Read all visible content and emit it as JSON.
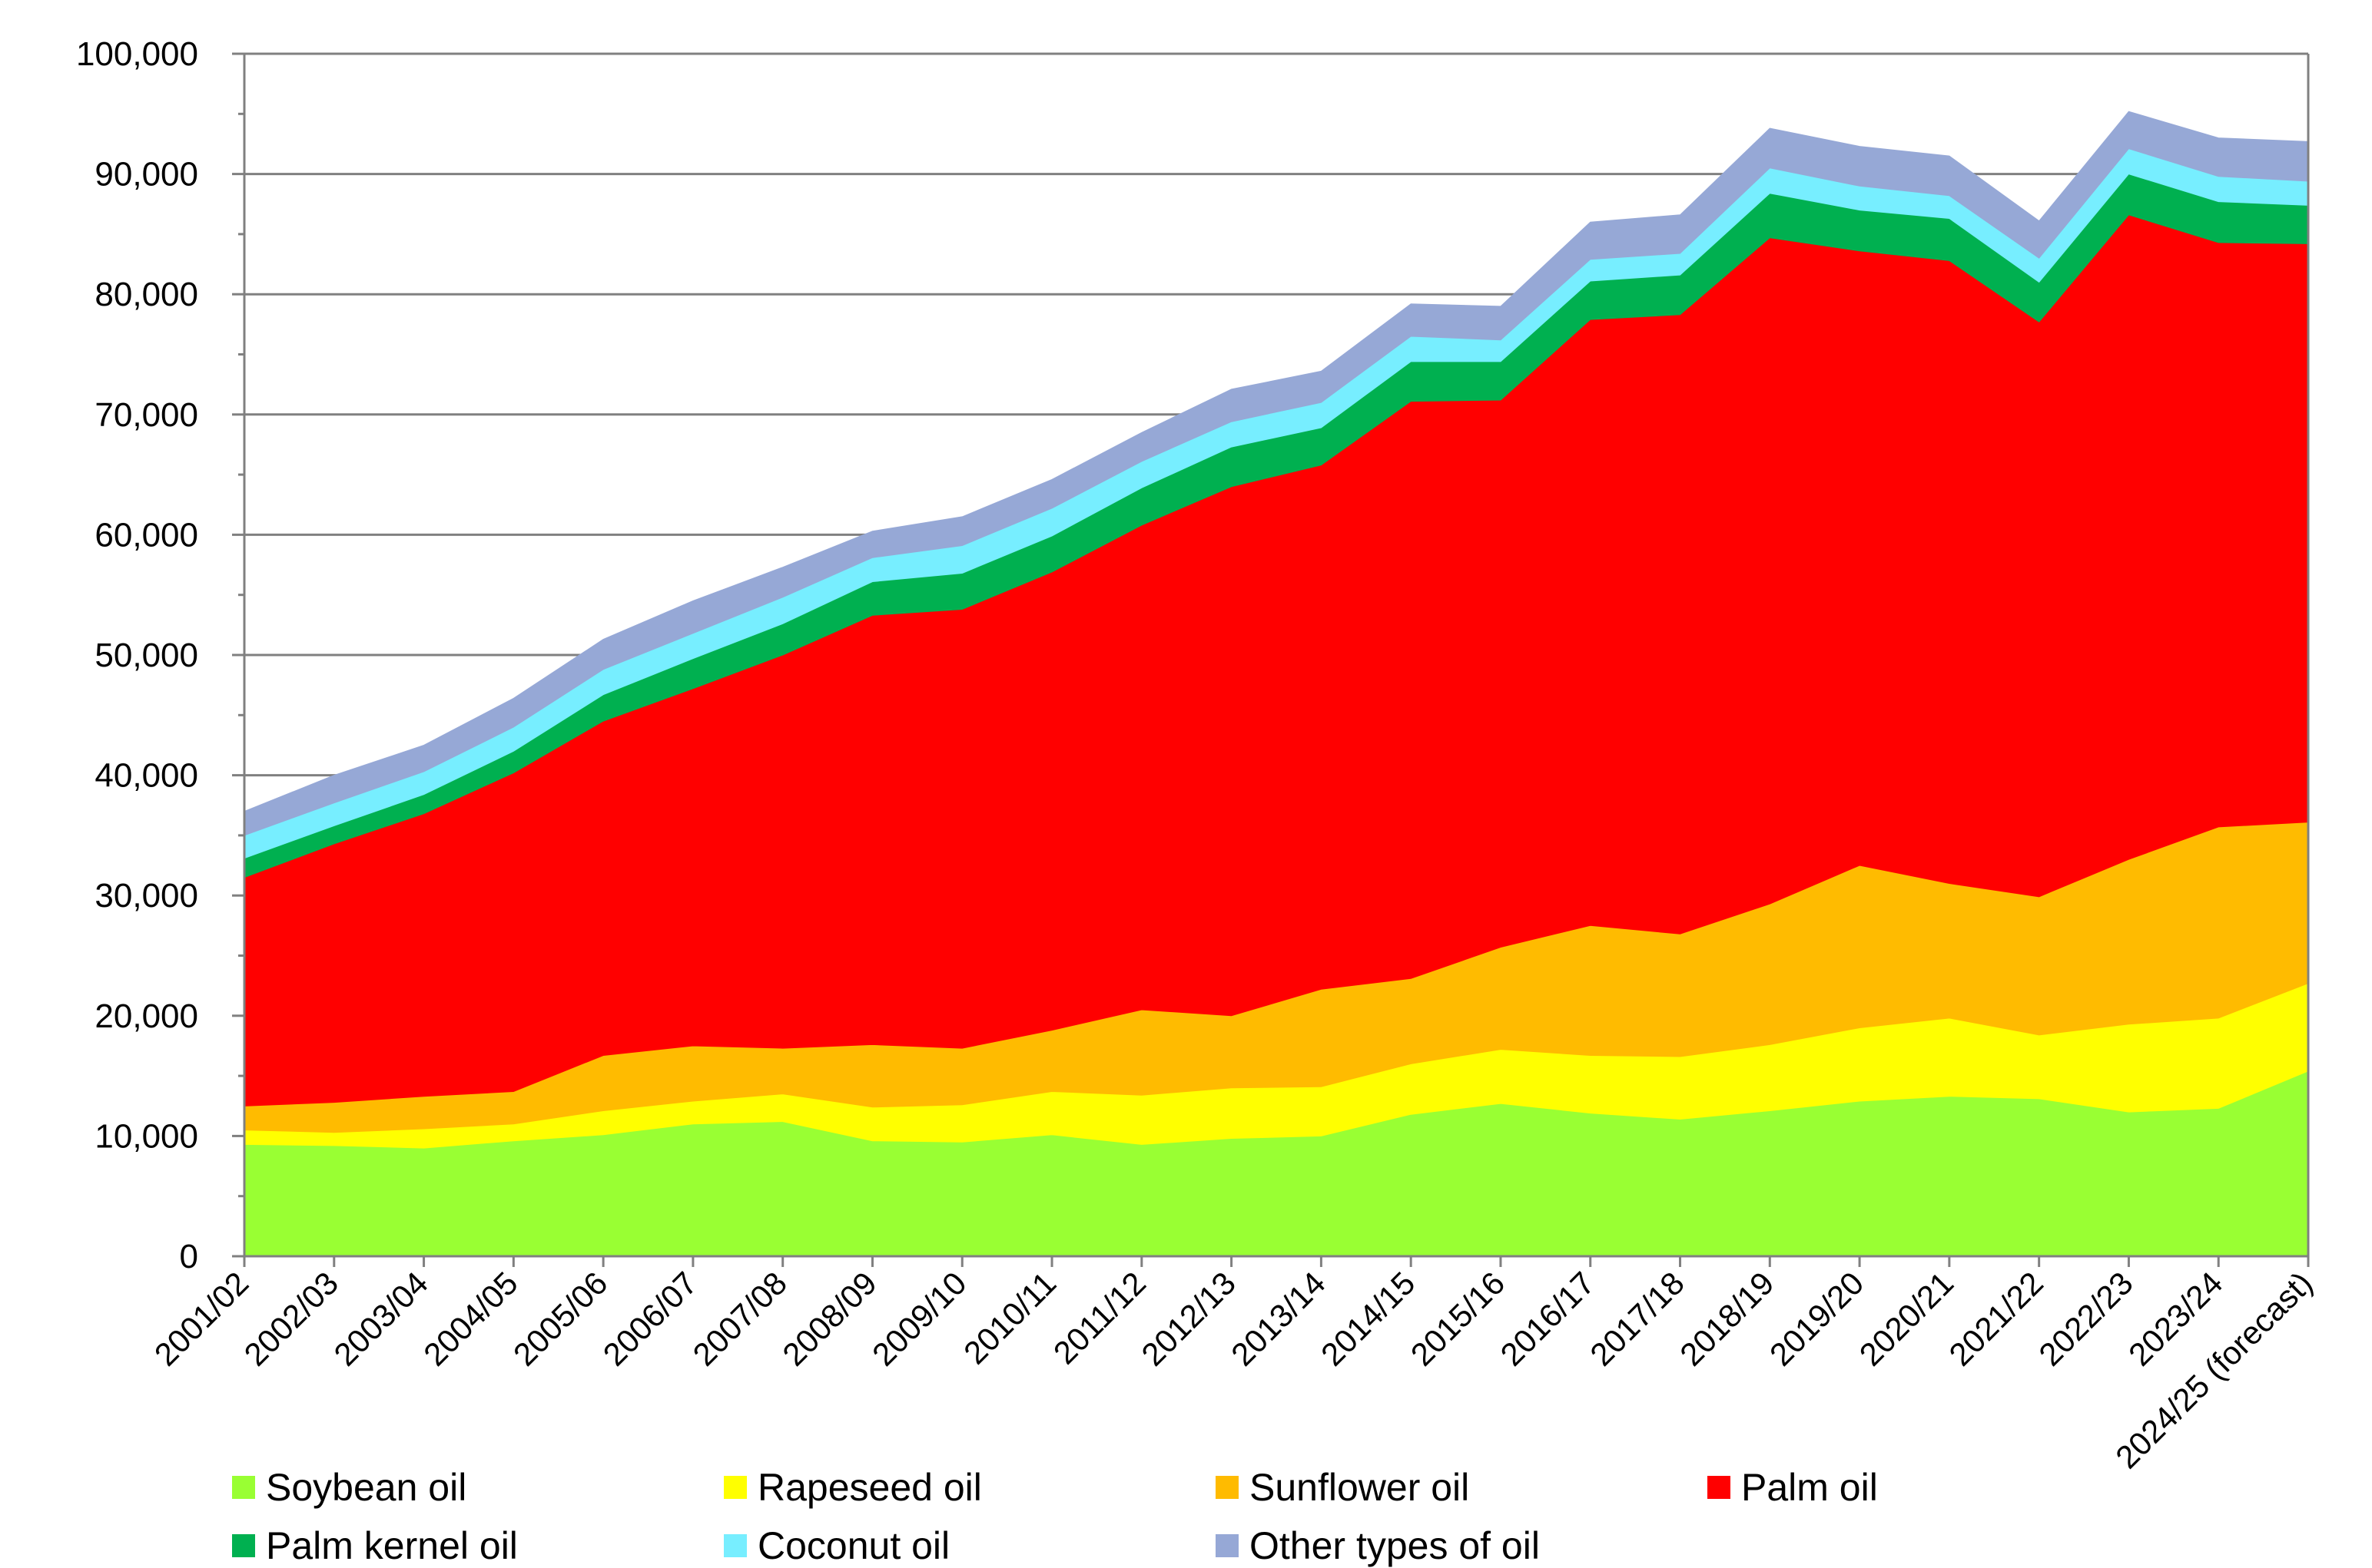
{
  "chart_data": {
    "type": "area",
    "stacked": true,
    "title": "",
    "xlabel": "",
    "ylabel": "",
    "ylim": [
      0,
      100000
    ],
    "yticks": [
      "0",
      "10,000",
      "20,000",
      "30,000",
      "40,000",
      "50,000",
      "60,000",
      "70,000",
      "80,000",
      "90,000",
      "100,000"
    ],
    "grid": "horizontal",
    "legend_position": "bottom",
    "categories": [
      "2001/02",
      "2002/03",
      "2003/04",
      "2004/05",
      "2005/06",
      "2006/07",
      "2007/08",
      "2008/09",
      "2009/10",
      "2010/11",
      "2011/12",
      "2012/13",
      "2013/14",
      "2014/15",
      "2015/16",
      "2016/17",
      "2017/18",
      "2018/19",
      "2019/20",
      "2020/21",
      "2021/22",
      "2022/23",
      "2023/24",
      "2024/25 (forecast)"
    ],
    "series": [
      {
        "name": "Soybean oil",
        "color": "#99ff33",
        "values": [
          9300,
          9200,
          9000,
          9600,
          10100,
          11000,
          11200,
          9600,
          9500,
          10100,
          9300,
          9800,
          10000,
          11800,
          12700,
          11900,
          11400,
          12100,
          12900,
          13300,
          13100,
          12000,
          12300,
          15400
        ]
      },
      {
        "name": "Rapeseed oil",
        "color": "#ffff00",
        "values": [
          1200,
          1100,
          1600,
          1400,
          2000,
          1900,
          2300,
          2800,
          3100,
          3600,
          4100,
          4200,
          4100,
          4200,
          4500,
          4800,
          5200,
          5500,
          6100,
          6500,
          5300,
          7300,
          7500,
          7300
        ]
      },
      {
        "name": "Sunflower oil",
        "color": "#ffbb00",
        "values": [
          2000,
          2500,
          2700,
          2700,
          4600,
          4600,
          3800,
          5200,
          4700,
          5100,
          7100,
          6000,
          8100,
          7100,
          8500,
          10800,
          10200,
          11700,
          13500,
          11200,
          11500,
          13700,
          15900,
          13400
        ]
      },
      {
        "name": "Palm oil",
        "color": "#ff0000",
        "values": [
          19000,
          21500,
          23500,
          26500,
          27800,
          29700,
          32700,
          35700,
          36500,
          38100,
          40300,
          44000,
          43600,
          48000,
          45500,
          50400,
          51500,
          55400,
          51100,
          51800,
          47800,
          53600,
          48600,
          48100
        ]
      },
      {
        "name": "Palm kernel oil",
        "color": "#00b050",
        "values": [
          1600,
          1500,
          1600,
          1800,
          2200,
          2500,
          2600,
          2800,
          3000,
          3000,
          3100,
          3300,
          3100,
          3300,
          3200,
          3200,
          3300,
          3700,
          3400,
          3500,
          3300,
          3400,
          3400,
          3200
        ]
      },
      {
        "name": "Coconut oil",
        "color": "#77eeff",
        "values": [
          1900,
          1900,
          1900,
          2000,
          2100,
          2100,
          2200,
          2000,
          2300,
          2300,
          2200,
          2100,
          2100,
          2100,
          1800,
          1800,
          1800,
          2100,
          2000,
          1900,
          2000,
          2100,
          2100,
          2000
        ]
      },
      {
        "name": "Other types of oil",
        "color": "#96a8d6",
        "values": [
          2000,
          2300,
          2200,
          2400,
          2500,
          2700,
          2500,
          2200,
          2400,
          2400,
          2400,
          2700,
          2600,
          2700,
          2800,
          3100,
          3200,
          3300,
          3300,
          3300,
          3100,
          3100,
          3200,
          3300
        ]
      }
    ]
  }
}
